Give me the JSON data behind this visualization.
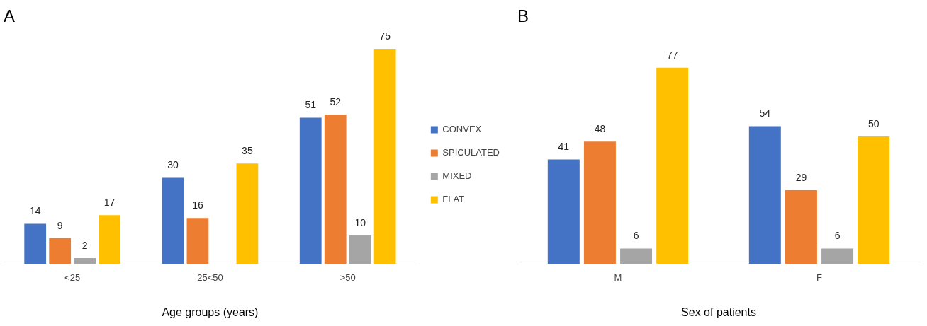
{
  "chart_data": [
    {
      "type": "bar",
      "title": "A",
      "xlabel": "Age groups (years)",
      "categories": [
        "<25",
        "25<50",
        ">50"
      ],
      "series": [
        {
          "name": "CONVEX",
          "color": "#4472c4",
          "values": [
            14,
            30,
            51
          ]
        },
        {
          "name": "SPICULATED",
          "color": "#ed7d31",
          "values": [
            9,
            16,
            52
          ]
        },
        {
          "name": "MIXED",
          "color": "#a5a5a5",
          "values": [
            2,
            null,
            10
          ]
        },
        {
          "name": "FLAT",
          "color": "#ffc000",
          "values": [
            17,
            35,
            75
          ]
        }
      ],
      "data_labels": true,
      "legend": "right",
      "tick_labels": "x",
      "grid": false
    },
    {
      "type": "bar",
      "title": "B",
      "xlabel": "Sex of patients",
      "categories": [
        "M",
        "F"
      ],
      "series": [
        {
          "color": "#4472c4",
          "values": [
            41,
            54
          ]
        },
        {
          "color": "#ed7d31",
          "values": [
            48,
            29
          ]
        },
        {
          "color": "#a5a5a5",
          "values": [
            6,
            6
          ]
        },
        {
          "color": "#ffc000",
          "values": [
            77,
            50
          ]
        }
      ],
      "data_labels": true,
      "legend": false,
      "tick_labels": "x",
      "grid": false
    }
  ]
}
